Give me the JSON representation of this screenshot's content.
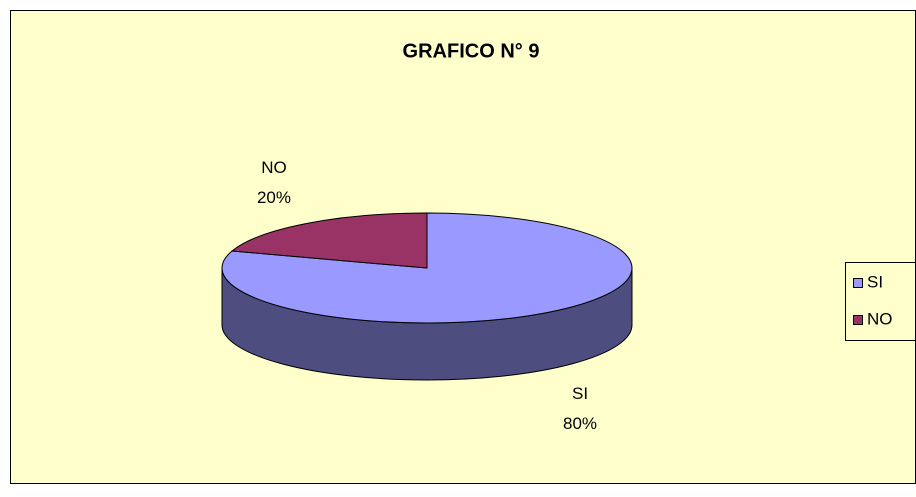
{
  "chart_data": {
    "type": "pie3d",
    "title": "GRAFICO N° 9",
    "categories": [
      "SI",
      "NO"
    ],
    "values": [
      80,
      20
    ],
    "value_labels": [
      "80%",
      "20%"
    ],
    "colors": [
      "#9999ff",
      "#993366"
    ],
    "side_colors": [
      "#4d4d80",
      "#4d1a33"
    ],
    "legend": "right"
  }
}
